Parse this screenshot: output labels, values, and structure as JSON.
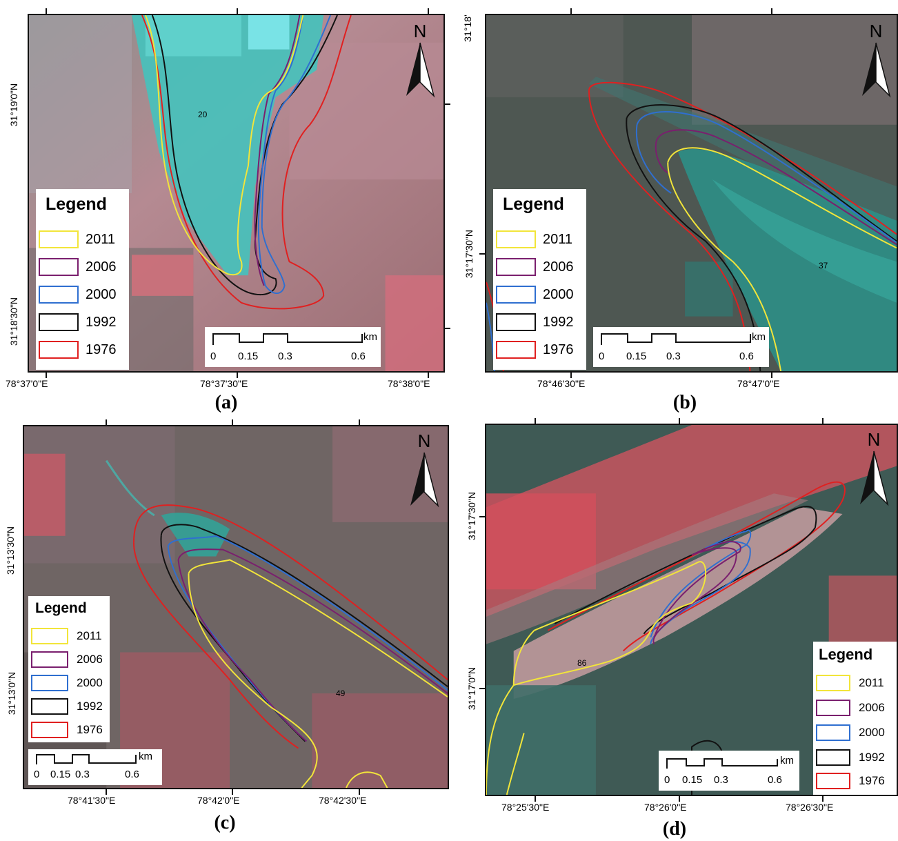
{
  "north_label": "N",
  "scale": {
    "unit": "km",
    "ticks": [
      "0",
      "0.15",
      "0.3",
      "0.6"
    ]
  },
  "legend": {
    "title": "Legend",
    "items": [
      {
        "year": "2011",
        "color": "#f2e53a"
      },
      {
        "year": "2006",
        "color": "#7a1f6e"
      },
      {
        "year": "2000",
        "color": "#2f6fd0"
      },
      {
        "year": "1992",
        "color": "#111111"
      },
      {
        "year": "1976",
        "color": "#e02020"
      }
    ]
  },
  "panels": [
    {
      "label": "(a)",
      "glacier_id": "20",
      "lon_labels": [
        "78°37'0\"E",
        "78°37'30\"E",
        "78°38'0\"E"
      ],
      "lat_labels": [
        "31°19'0\"N",
        "31°18'30\"N"
      ]
    },
    {
      "label": "(b)",
      "glacier_id": "37",
      "lon_labels": [
        "78°46'30\"E",
        "78°47'0\"E"
      ],
      "lat_labels": [
        "31°18'",
        "31°17'30\"N"
      ]
    },
    {
      "label": "(c)",
      "glacier_id": "49",
      "lon_labels": [
        "78°41'30\"E",
        "78°42'0\"E",
        "78°42'30\"E"
      ],
      "lat_labels": [
        "31°13'30\"N",
        "31°13'0\"N"
      ]
    },
    {
      "label": "(d)",
      "glacier_id": "86",
      "lon_labels": [
        "78°25'30\"E",
        "78°26'0\"E",
        "78°26'30\"E"
      ],
      "lat_labels": [
        "31°17'30\"N",
        "31°17'0\"N"
      ]
    }
  ]
}
